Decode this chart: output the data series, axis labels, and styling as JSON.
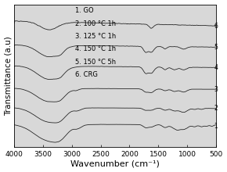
{
  "xlabel": "Wavenumber (cm⁻¹)",
  "ylabel": "Transmittance (a.u)",
  "xlim": [
    4000,
    500
  ],
  "legend_entries": [
    "1. GO",
    "2. 100 °C 1h",
    "3. 125 °C 1h",
    "4. 150 °C 1h",
    "5. 150 °C 5h",
    "6. CRG"
  ],
  "spectrum_labels": [
    "1",
    "2",
    "3",
    "4",
    "5",
    "6"
  ],
  "offsets": [
    0.0,
    0.13,
    0.27,
    0.42,
    0.57,
    0.75
  ],
  "line_color": "#1a1a1a",
  "xticks": [
    4000,
    3500,
    3000,
    2500,
    2000,
    1500,
    1000,
    500
  ],
  "xlabel_fontsize": 8,
  "ylabel_fontsize": 7.5,
  "tick_fontsize": 6.5,
  "legend_fontsize": 6.0,
  "background_color": "#d8d8d8"
}
